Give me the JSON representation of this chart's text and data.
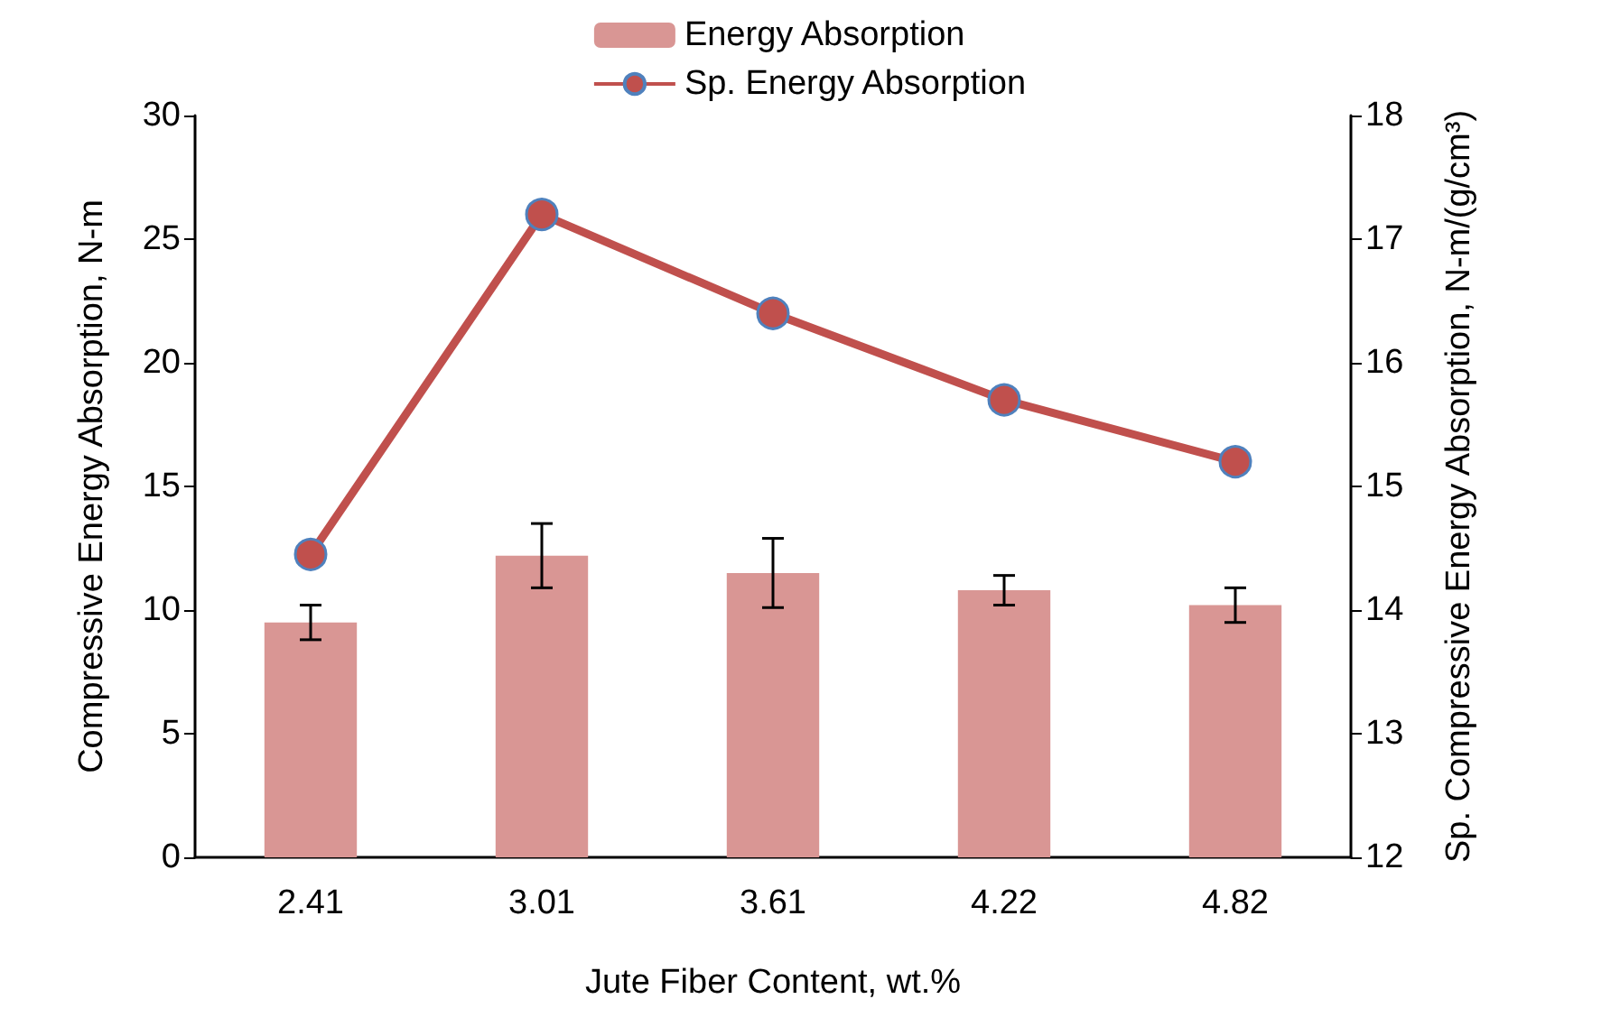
{
  "chart_data": {
    "type": "bar",
    "xlabel": "Jute Fiber Content, wt.%",
    "ylabel": "Compressive Energy Absorption, N-m",
    "y2label": "Sp. Compressive Energy Absorption, N-m/(g/cm³)",
    "categories": [
      "2.41",
      "3.01",
      "3.61",
      "4.22",
      "4.82"
    ],
    "series": [
      {
        "name": "Energy Absorption",
        "color": "#d99694",
        "values": [
          9.5,
          12.2,
          11.5,
          10.8,
          10.2
        ],
        "errors": [
          0.7,
          1.3,
          1.4,
          0.6,
          0.7
        ]
      },
      {
        "name": "Sp. Energy Absorption",
        "type": "line",
        "axis": "y2",
        "color": "#c0504d",
        "marker": "circle",
        "values": [
          14.45,
          17.2,
          16.4,
          15.7,
          15.2
        ]
      }
    ],
    "ylim": [
      0,
      30
    ],
    "yticks": [
      0,
      5,
      10,
      15,
      20,
      25,
      30
    ],
    "y2lim": [
      12,
      18
    ],
    "y2ticks": [
      12,
      13,
      14,
      15,
      16,
      17,
      18
    ],
    "grid": false,
    "legend": "top"
  }
}
